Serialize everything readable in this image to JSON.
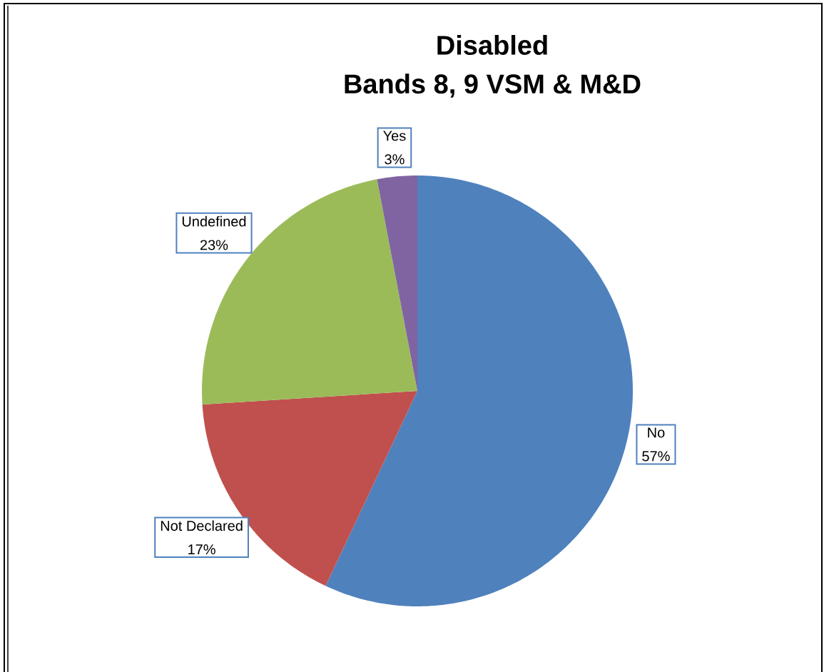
{
  "chart_data": {
    "type": "pie",
    "title": "Disabled",
    "subtitle": "Bands 8, 9 VSM & M&D",
    "categories": [
      "No",
      "Not Declared",
      "Undefined",
      "Yes"
    ],
    "values": [
      57,
      17,
      23,
      3
    ],
    "value_labels": [
      "57%",
      "17%",
      "23%",
      "3%"
    ],
    "colors": [
      "#4f81bd",
      "#c0504d",
      "#9bbb59",
      "#8064a2"
    ]
  }
}
